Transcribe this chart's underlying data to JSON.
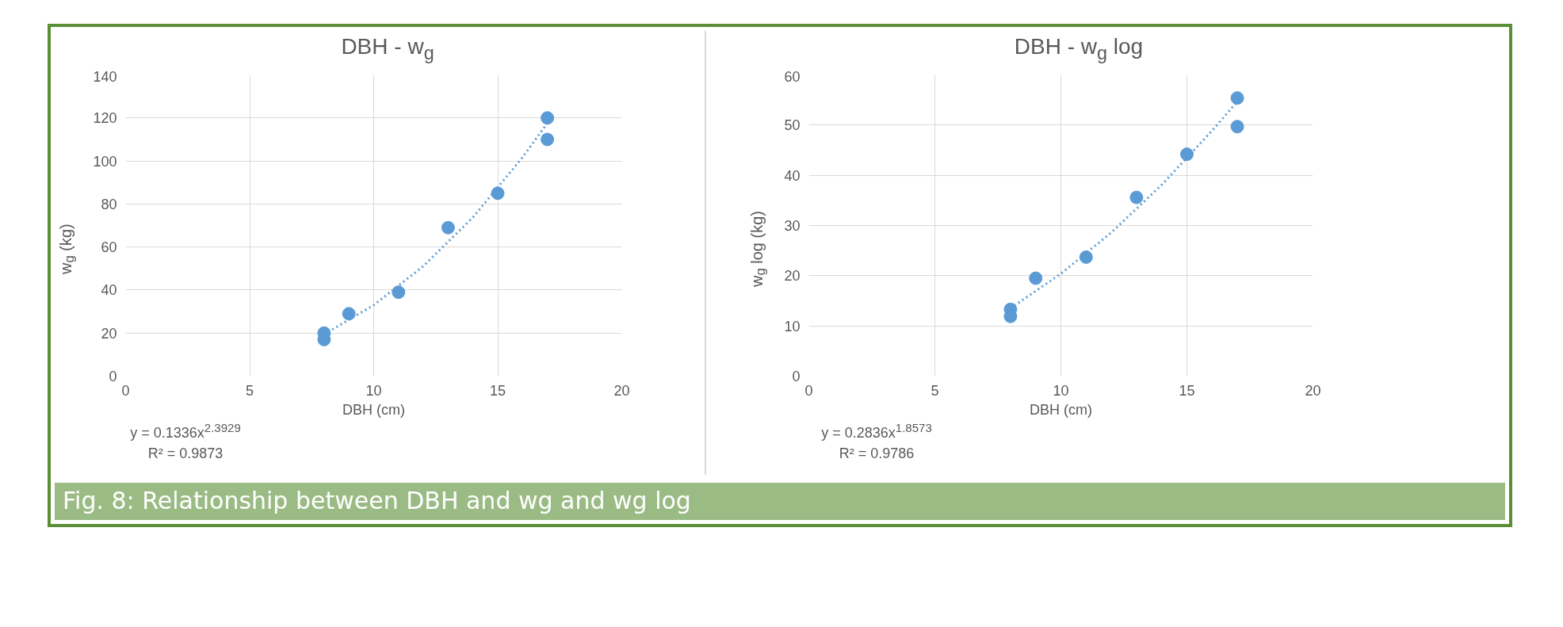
{
  "chart_data": [
    {
      "type": "scatter",
      "title": "DBH - w$_{g}$",
      "xlabel": "DBH (cm)",
      "ylabel": "w$_{g}$ (kg)",
      "x": [
        8,
        8,
        9,
        11,
        13,
        15,
        17,
        17
      ],
      "series": [
        {
          "color": "#5b9bd5",
          "marker": "circle",
          "values": [
            20,
            17,
            29,
            39,
            69,
            85,
            120,
            110
          ]
        },
        {
          "type": "line",
          "color": "#5b9bd5",
          "line_style": "dotted",
          "marker": "none",
          "x": [
            8,
            10,
            12,
            14,
            16,
            17
          ],
          "values": [
            19.4,
            33,
            51.1,
            73.8,
            101.7,
            117.6
          ]
        }
      ],
      "xlim": [
        0,
        20
      ],
      "xticks": [
        0,
        5,
        10,
        15,
        20
      ],
      "ylim": [
        0,
        140
      ],
      "yticks": [
        0,
        20,
        40,
        60,
        80,
        100,
        120,
        140
      ],
      "grid": true,
      "annotations": [
        "y = 0.1336x$^{2.3929}$",
        "R² = 0.9873",
        "Fig. 8: Relationship between DBH and wg and wg log"
      ]
    },
    {
      "type": "scatter",
      "title": "DBH - w$_{g}$ log",
      "xlabel": "DBH (cm)",
      "ylabel": "w$_{g}$ log (kg)",
      "x": [
        8,
        8,
        9,
        11,
        13,
        15,
        17,
        17
      ],
      "series": [
        {
          "color": "#5b9bd5",
          "marker": "circle",
          "values": [
            13.3,
            11.9,
            19.5,
            23.7,
            35.6,
            44.2,
            55.4,
            49.7
          ]
        },
        {
          "type": "line",
          "color": "#5b9bd5",
          "line_style": "dotted",
          "marker": "none",
          "x": [
            8,
            10,
            12,
            14,
            16,
            17
          ],
          "values": [
            13.5,
            20.4,
            28.6,
            38.1,
            48.9,
            54.7
          ]
        }
      ],
      "xlim": [
        0,
        20
      ],
      "xticks": [
        0,
        5,
        10,
        15,
        20
      ],
      "ylim": [
        0,
        60
      ],
      "yticks": [
        0,
        10,
        20,
        30,
        40,
        50,
        60
      ],
      "grid": true,
      "annotations": [
        "y = 0.2836x$^{1.8573}$",
        "R² = 0.9786"
      ]
    }
  ]
}
